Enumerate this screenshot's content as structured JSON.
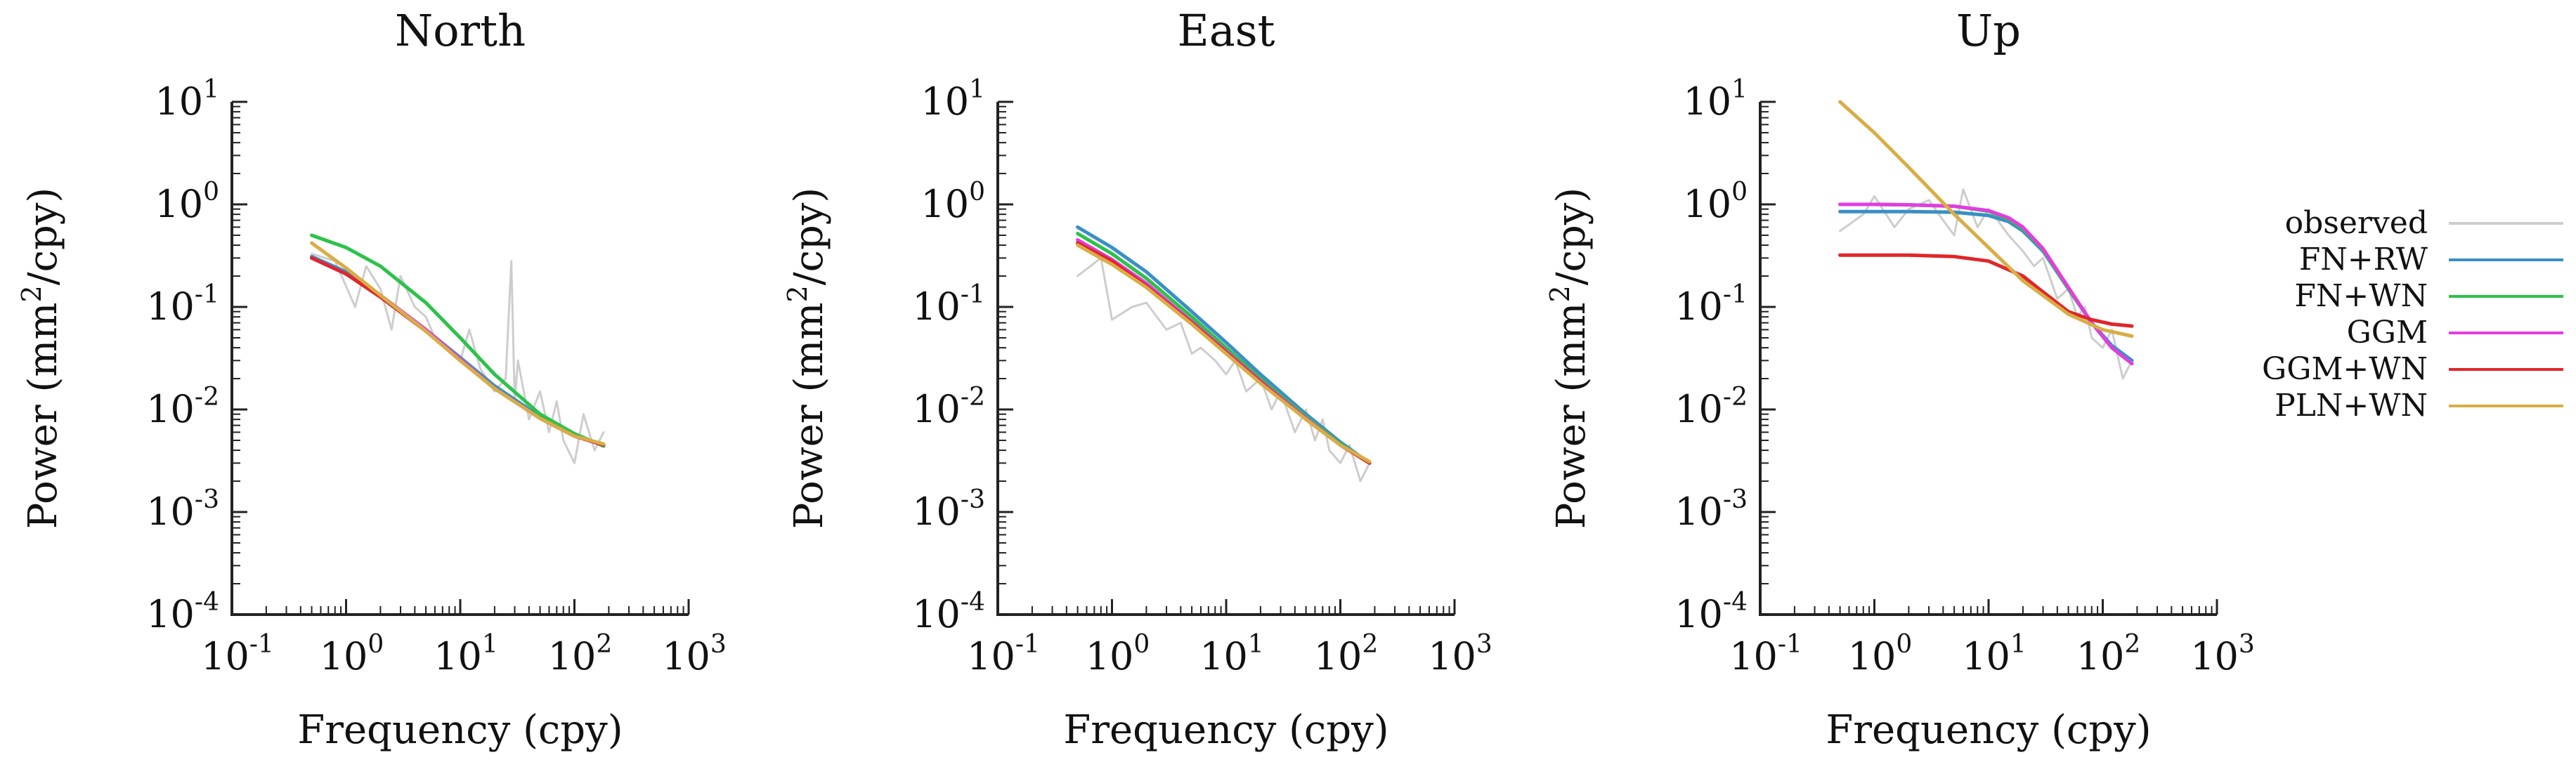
{
  "colors": {
    "observed": "#cdcdcd",
    "FN+RW": "#3a8fc4",
    "FN+WN": "#2cc24a",
    "GGM": "#e23de0",
    "GGM+WN": "#e0262a",
    "PLN+WN": "#d9ad46"
  },
  "legend": {
    "items": [
      {
        "key": "observed",
        "label": "observed"
      },
      {
        "key": "FN+RW",
        "label": "FN+RW"
      },
      {
        "key": "FN+WN",
        "label": "FN+WN"
      },
      {
        "key": "GGM",
        "label": "GGM"
      },
      {
        "key": "GGM+WN",
        "label": "GGM+WN"
      },
      {
        "key": "PLN+WN",
        "label": "PLN+WN"
      }
    ]
  },
  "chart_data": [
    {
      "type": "line",
      "title": "North",
      "xlabel": "Frequency (cpy)",
      "ylabel": "Power (mm2/cpy)",
      "xscale": "log",
      "yscale": "log",
      "xlim": [
        0.1,
        1000
      ],
      "ylim": [
        0.0001,
        10
      ],
      "xticks": [
        {
          "base": "10",
          "exp": "-1"
        },
        {
          "base": "10",
          "exp": "0"
        },
        {
          "base": "10",
          "exp": "1"
        },
        {
          "base": "10",
          "exp": "2"
        },
        {
          "base": "10",
          "exp": "3"
        }
      ],
      "yticks": [
        {
          "base": "10",
          "exp": "-4"
        },
        {
          "base": "10",
          "exp": "-3"
        },
        {
          "base": "10",
          "exp": "-2"
        },
        {
          "base": "10",
          "exp": "-1"
        },
        {
          "base": "10",
          "exp": "0"
        },
        {
          "base": "10",
          "exp": "1"
        }
      ],
      "series": [
        {
          "name": "observed",
          "x": [
            0.5,
            0.8,
            1.2,
            1.5,
            2,
            2.5,
            3,
            4,
            5,
            6,
            8,
            10,
            12,
            15,
            20,
            25,
            28,
            30,
            32,
            40,
            50,
            60,
            70,
            80,
            100,
            120,
            150,
            180
          ],
          "y": [
            0.33,
            0.28,
            0.1,
            0.25,
            0.15,
            0.06,
            0.2,
            0.1,
            0.08,
            0.05,
            0.04,
            0.03,
            0.06,
            0.025,
            0.015,
            0.02,
            0.28,
            0.012,
            0.03,
            0.008,
            0.015,
            0.006,
            0.012,
            0.005,
            0.003,
            0.009,
            0.004,
            0.006
          ]
        },
        {
          "name": "FN+RW",
          "x": [
            0.5,
            1,
            2,
            5,
            10,
            20,
            50,
            100,
            180
          ],
          "y": [
            0.31,
            0.22,
            0.13,
            0.06,
            0.032,
            0.017,
            0.0085,
            0.0055,
            0.0045
          ]
        },
        {
          "name": "FN+WN",
          "x": [
            0.5,
            1,
            2,
            5,
            10,
            20,
            50,
            100,
            180
          ],
          "y": [
            0.5,
            0.38,
            0.25,
            0.11,
            0.05,
            0.022,
            0.009,
            0.0058,
            0.0044
          ]
        },
        {
          "name": "GGM",
          "x": [
            0.5,
            1,
            2,
            5,
            10,
            20,
            50,
            100,
            180
          ],
          "y": [
            0.3,
            0.21,
            0.13,
            0.06,
            0.031,
            0.016,
            0.0082,
            0.0055,
            0.0045
          ]
        },
        {
          "name": "GGM+WN",
          "x": [
            0.5,
            1,
            2,
            5,
            10,
            20,
            50,
            100,
            180
          ],
          "y": [
            0.3,
            0.21,
            0.125,
            0.058,
            0.03,
            0.016,
            0.0082,
            0.0055,
            0.0045
          ]
        },
        {
          "name": "PLN+WN",
          "x": [
            0.5,
            1,
            2,
            5,
            10,
            20,
            50,
            100,
            180
          ],
          "y": [
            0.42,
            0.24,
            0.13,
            0.058,
            0.03,
            0.016,
            0.0082,
            0.0055,
            0.0046
          ]
        }
      ]
    },
    {
      "type": "line",
      "title": "East",
      "xlabel": "Frequency (cpy)",
      "ylabel": "Power (mm2/cpy)",
      "xscale": "log",
      "yscale": "log",
      "xlim": [
        0.1,
        1000
      ],
      "ylim": [
        0.0001,
        10
      ],
      "xticks": [
        {
          "base": "10",
          "exp": "-1"
        },
        {
          "base": "10",
          "exp": "0"
        },
        {
          "base": "10",
          "exp": "1"
        },
        {
          "base": "10",
          "exp": "2"
        },
        {
          "base": "10",
          "exp": "3"
        }
      ],
      "yticks": [
        {
          "base": "10",
          "exp": "-4"
        },
        {
          "base": "10",
          "exp": "-3"
        },
        {
          "base": "10",
          "exp": "-2"
        },
        {
          "base": "10",
          "exp": "-1"
        },
        {
          "base": "10",
          "exp": "0"
        },
        {
          "base": "10",
          "exp": "1"
        }
      ],
      "series": [
        {
          "name": "observed",
          "x": [
            0.5,
            0.8,
            1,
            1.5,
            2,
            3,
            4,
            5,
            6,
            8,
            10,
            12,
            15,
            20,
            25,
            30,
            40,
            50,
            60,
            70,
            80,
            100,
            120,
            150,
            180
          ],
          "y": [
            0.2,
            0.3,
            0.075,
            0.1,
            0.11,
            0.06,
            0.07,
            0.035,
            0.04,
            0.03,
            0.022,
            0.03,
            0.015,
            0.02,
            0.01,
            0.015,
            0.006,
            0.01,
            0.005,
            0.008,
            0.004,
            0.003,
            0.0045,
            0.002,
            0.003
          ]
        },
        {
          "name": "FN+RW",
          "x": [
            0.5,
            1,
            2,
            5,
            10,
            20,
            50,
            100,
            180
          ],
          "y": [
            0.6,
            0.38,
            0.22,
            0.09,
            0.045,
            0.022,
            0.009,
            0.0048,
            0.003
          ]
        },
        {
          "name": "FN+WN",
          "x": [
            0.5,
            1,
            2,
            5,
            10,
            20,
            50,
            100,
            180
          ],
          "y": [
            0.52,
            0.33,
            0.19,
            0.08,
            0.04,
            0.02,
            0.0085,
            0.0046,
            0.003
          ]
        },
        {
          "name": "GGM",
          "x": [
            0.5,
            1,
            2,
            5,
            10,
            20,
            50,
            100,
            180
          ],
          "y": [
            0.45,
            0.29,
            0.17,
            0.072,
            0.037,
            0.019,
            0.0082,
            0.0045,
            0.003
          ]
        },
        {
          "name": "GGM+WN",
          "x": [
            0.5,
            1,
            2,
            5,
            10,
            20,
            50,
            100,
            180
          ],
          "y": [
            0.42,
            0.28,
            0.16,
            0.07,
            0.036,
            0.0185,
            0.008,
            0.0045,
            0.003
          ]
        },
        {
          "name": "PLN+WN",
          "x": [
            0.5,
            1,
            2,
            5,
            10,
            20,
            50,
            100,
            180
          ],
          "y": [
            0.4,
            0.26,
            0.155,
            0.068,
            0.035,
            0.018,
            0.008,
            0.0045,
            0.0031
          ]
        }
      ]
    },
    {
      "type": "line",
      "title": "Up",
      "xlabel": "Frequency (cpy)",
      "ylabel": "Power (mm2/cpy)",
      "xscale": "log",
      "yscale": "log",
      "xlim": [
        0.1,
        1000
      ],
      "ylim": [
        0.0001,
        10
      ],
      "xticks": [
        {
          "base": "10",
          "exp": "-1"
        },
        {
          "base": "10",
          "exp": "0"
        },
        {
          "base": "10",
          "exp": "1"
        },
        {
          "base": "10",
          "exp": "2"
        },
        {
          "base": "10",
          "exp": "3"
        }
      ],
      "yticks": [
        {
          "base": "10",
          "exp": "-4"
        },
        {
          "base": "10",
          "exp": "-3"
        },
        {
          "base": "10",
          "exp": "-2"
        },
        {
          "base": "10",
          "exp": "-1"
        },
        {
          "base": "10",
          "exp": "0"
        },
        {
          "base": "10",
          "exp": "1"
        }
      ],
      "series": [
        {
          "name": "observed",
          "x": [
            0.5,
            0.8,
            1,
            1.5,
            2,
            3,
            4,
            5,
            6,
            8,
            10,
            12,
            15,
            20,
            25,
            30,
            40,
            50,
            60,
            70,
            80,
            100,
            120,
            150,
            180
          ],
          "y": [
            0.55,
            0.8,
            1.2,
            0.6,
            0.9,
            1.1,
            0.7,
            0.5,
            1.4,
            0.6,
            0.9,
            0.7,
            0.5,
            0.35,
            0.25,
            0.3,
            0.12,
            0.15,
            0.08,
            0.1,
            0.05,
            0.04,
            0.06,
            0.02,
            0.03
          ]
        },
        {
          "name": "FN+RW",
          "x": [
            0.5,
            1,
            2,
            5,
            10,
            15,
            20,
            30,
            50,
            80,
            120,
            180
          ],
          "y": [
            0.85,
            0.85,
            0.85,
            0.84,
            0.78,
            0.68,
            0.55,
            0.35,
            0.15,
            0.07,
            0.042,
            0.03
          ]
        },
        {
          "name": "FN+WN",
          "x": [
            0.5,
            1,
            2,
            5,
            10,
            15,
            20,
            30,
            50,
            80,
            120,
            180
          ],
          "y": [
            1.0,
            1.0,
            0.99,
            0.96,
            0.86,
            0.72,
            0.58,
            0.36,
            0.15,
            0.07,
            0.04,
            0.028
          ]
        },
        {
          "name": "GGM",
          "x": [
            0.5,
            1,
            2,
            5,
            10,
            15,
            20,
            30,
            50,
            80,
            120,
            180
          ],
          "y": [
            1.0,
            1.0,
            0.99,
            0.96,
            0.87,
            0.74,
            0.6,
            0.37,
            0.155,
            0.07,
            0.04,
            0.028
          ]
        },
        {
          "name": "GGM+WN",
          "x": [
            0.5,
            1,
            2,
            5,
            10,
            20,
            30,
            50,
            80,
            120,
            180
          ],
          "y": [
            0.32,
            0.32,
            0.32,
            0.31,
            0.28,
            0.2,
            0.14,
            0.09,
            0.075,
            0.068,
            0.065
          ]
        },
        {
          "name": "PLN+WN",
          "x": [
            0.5,
            1,
            2,
            5,
            10,
            20,
            50,
            100,
            180
          ],
          "y": [
            10,
            5,
            2.3,
            0.8,
            0.38,
            0.18,
            0.085,
            0.06,
            0.052
          ]
        }
      ]
    }
  ]
}
